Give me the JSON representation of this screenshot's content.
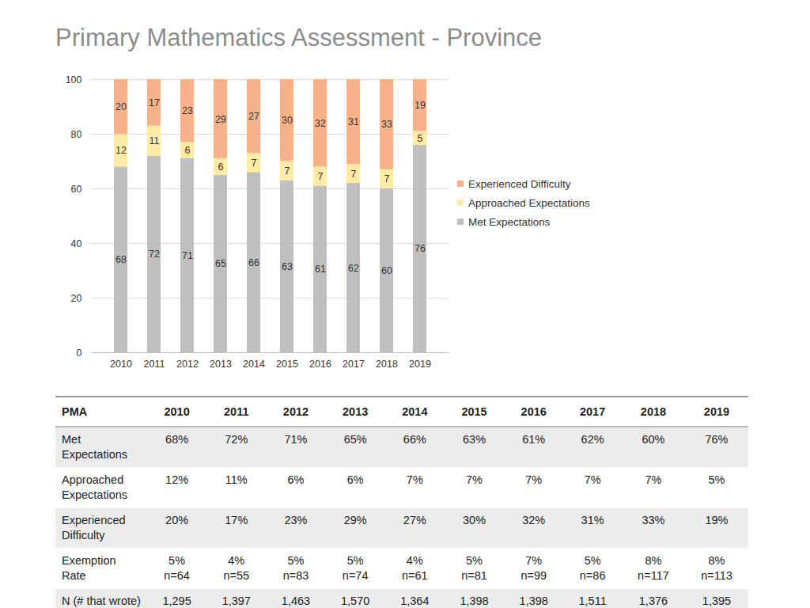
{
  "chart_data": {
    "type": "bar",
    "title": "Primary Mathematics Assessment - Province",
    "categories": [
      "2010",
      "2011",
      "2012",
      "2013",
      "2014",
      "2015",
      "2016",
      "2017",
      "2018",
      "2019"
    ],
    "series": [
      {
        "name": "Met Expectations",
        "color": "#bfbfbf",
        "values": [
          68,
          72,
          71,
          65,
          66,
          63,
          61,
          62,
          60,
          76
        ]
      },
      {
        "name": "Approached Expectations",
        "color": "#fdeba6",
        "values": [
          12,
          11,
          6,
          6,
          7,
          7,
          7,
          7,
          7,
          5
        ]
      },
      {
        "name": "Experienced Difficulty",
        "color": "#f7b28b",
        "values": [
          20,
          17,
          23,
          29,
          27,
          30,
          32,
          31,
          33,
          19
        ]
      }
    ],
    "stacked": true,
    "data_labels": true,
    "grid": true,
    "legend": "right",
    "ylim": [
      0,
      100
    ],
    "yticks": [
      0,
      20,
      40,
      60,
      80,
      100
    ]
  },
  "table": {
    "header": [
      "PMA",
      "2010",
      "2011",
      "2012",
      "2013",
      "2014",
      "2015",
      "2016",
      "2017",
      "2018",
      "2019"
    ],
    "rows": [
      [
        "Met Expectations",
        "68%",
        "72%",
        "71%",
        "65%",
        "66%",
        "63%",
        "61%",
        "62%",
        "60%",
        "76%"
      ],
      [
        "Approached Expectations",
        "12%",
        "11%",
        "6%",
        "6%",
        "7%",
        "7%",
        "7%",
        "7%",
        "7%",
        "5%"
      ],
      [
        "Experienced Difficulty",
        "20%",
        "17%",
        "23%",
        "29%",
        "27%",
        "30%",
        "32%",
        "31%",
        "33%",
        "19%"
      ],
      [
        "Exemption Rate",
        [
          "5%",
          "n=64"
        ],
        [
          "4%",
          "n=55"
        ],
        [
          "5%",
          "n=83"
        ],
        [
          "5%",
          "n=74"
        ],
        [
          "4%",
          "n=61"
        ],
        [
          "5%",
          "n=81"
        ],
        [
          "7%",
          "n=99"
        ],
        [
          "5%",
          "n=86"
        ],
        [
          "8%",
          "n=117"
        ],
        [
          "8%",
          "n=113"
        ]
      ],
      [
        "N (# that wrote)",
        "1,295",
        "1,397",
        "1,463",
        "1,570",
        "1,364",
        "1,398",
        "1,398",
        "1,511",
        "1,376",
        "1,395"
      ]
    ]
  }
}
